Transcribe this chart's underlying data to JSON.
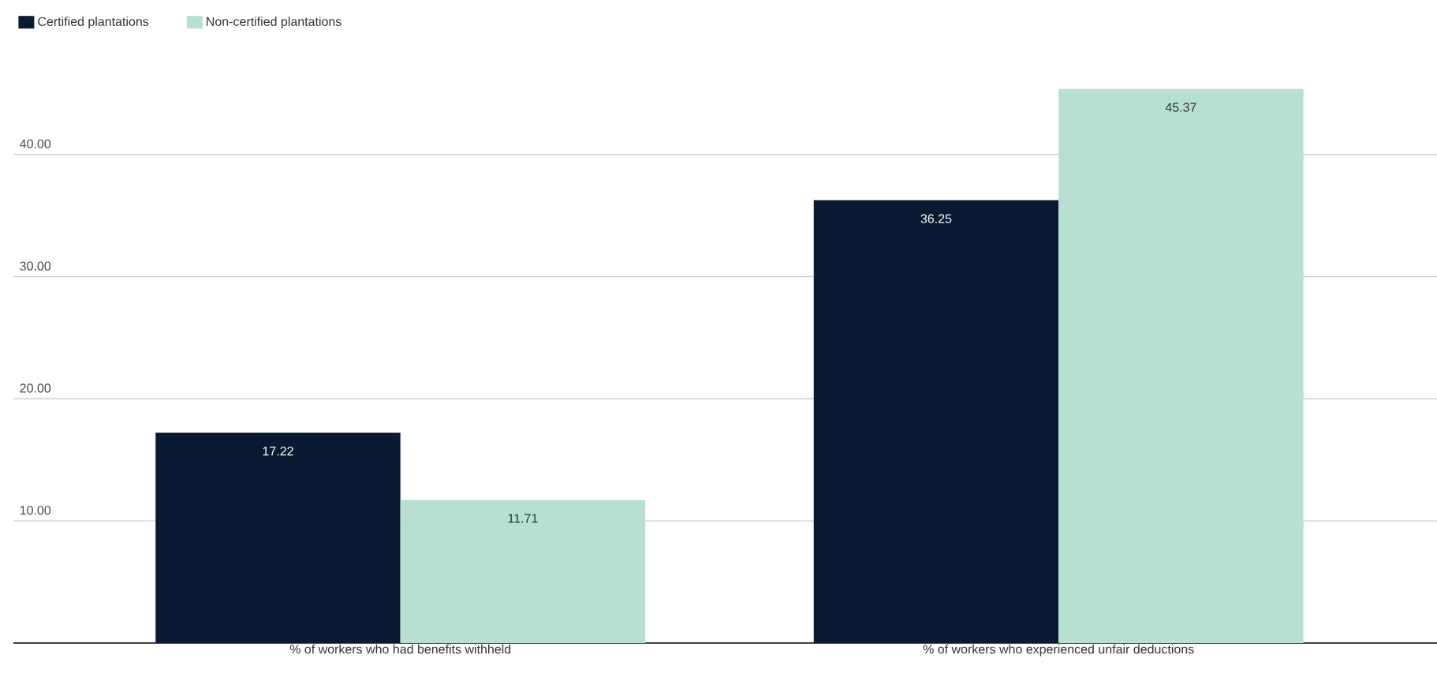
{
  "chart_data": {
    "type": "bar",
    "categories": [
      "% of workers who had benefits withheld",
      "% of workers who experienced unfair deductions"
    ],
    "series": [
      {
        "name": "Certified plantations",
        "color": "#0b1a33",
        "values": [
          17.22,
          36.25
        ]
      },
      {
        "name": "Non-certified plantations",
        "color": "#b7e0d3",
        "values": [
          11.71,
          45.37
        ]
      }
    ],
    "ylim": [
      0,
      45.37
    ],
    "yticks": [
      {
        "value": 10,
        "label": "10.00"
      },
      {
        "value": 20,
        "label": "20.00"
      },
      {
        "value": 30,
        "label": "30.00"
      },
      {
        "value": 40,
        "label": "40.00"
      }
    ],
    "grid": "y",
    "legend": "top left",
    "data_labels": true
  }
}
